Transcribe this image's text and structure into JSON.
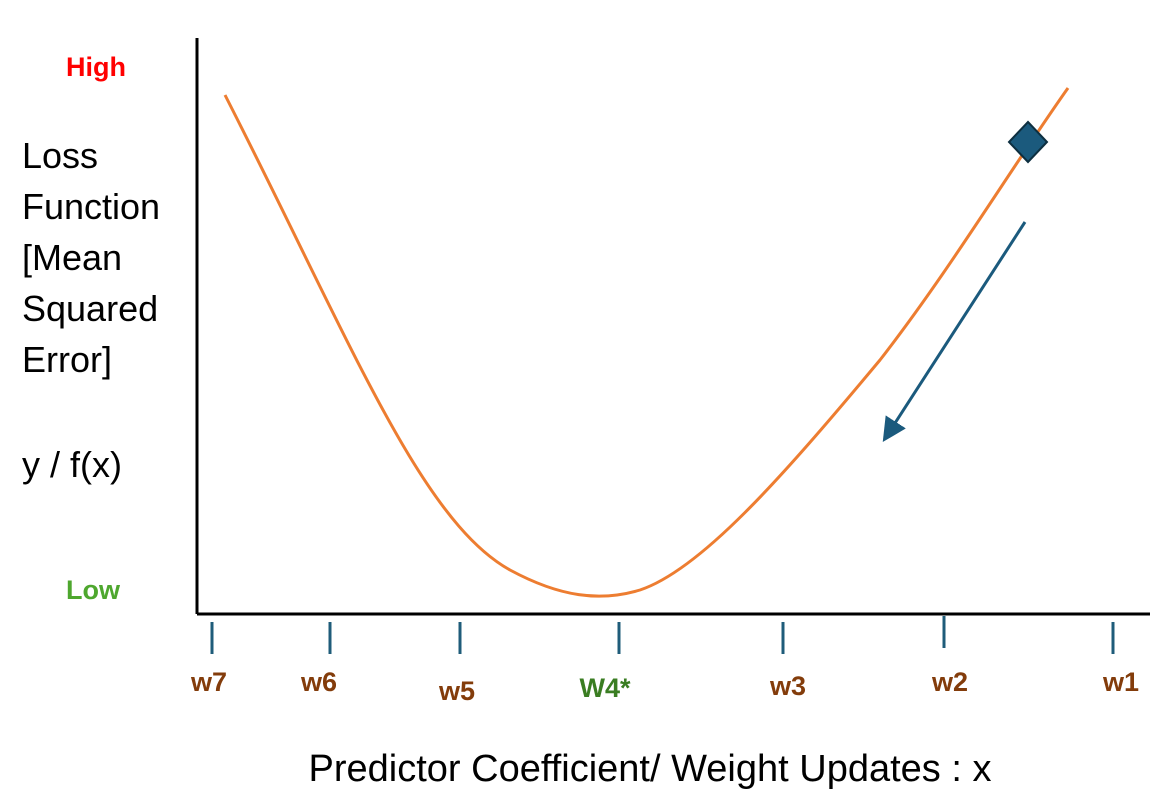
{
  "y_axis": {
    "title_lines": [
      "Loss",
      "Function",
      "[Mean",
      "Squared",
      "Error]"
    ],
    "variable": "y / f(x)",
    "high_label": "High",
    "low_label": "Low"
  },
  "x_axis": {
    "title": "Predictor Coefficient/ Weight Updates : x",
    "ticks": [
      {
        "label": "w7"
      },
      {
        "label": "w6"
      },
      {
        "label": "w5"
      },
      {
        "label": "W4*"
      },
      {
        "label": "w3"
      },
      {
        "label": "w2"
      },
      {
        "label": "w1"
      }
    ]
  },
  "colors": {
    "high": "#ff0000",
    "low": "#4ea72e",
    "tick_label": "#833c0b",
    "optimum_label": "#3a7d22",
    "curve": "#ed7d31",
    "tick_mark": "#1f5c7a",
    "marker": "#1b5a7d",
    "arrow": "#1b5a7d",
    "axis": "#000000"
  },
  "shapes": {
    "curve": "loss-curve",
    "marker": "diamond",
    "arrow": "descent-arrow"
  }
}
